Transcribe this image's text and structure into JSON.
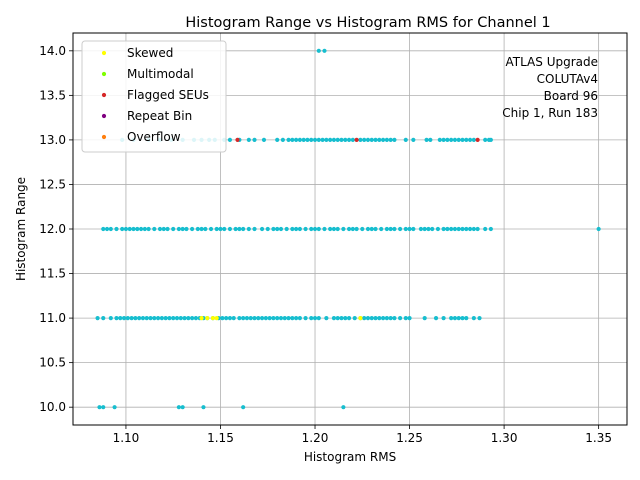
{
  "chart_data": {
    "type": "scatter",
    "title": "Histogram Range vs Histogram RMS for Channel 1",
    "xlabel": "Histogram RMS",
    "ylabel": "Histogram Range",
    "xlim": [
      1.072,
      1.365
    ],
    "ylim": [
      9.8,
      14.2
    ],
    "x_ticks": [
      "1.10",
      "1.15",
      "1.20",
      "1.25",
      "1.30",
      "1.35"
    ],
    "y_ticks": [
      "10.0",
      "10.5",
      "11.0",
      "11.5",
      "12.0",
      "12.5",
      "13.0",
      "13.5",
      "14.0"
    ],
    "grid": true,
    "legend_position": "top-left",
    "annotation": [
      "ATLAS Upgrade",
      "COLUTAv4",
      "Board 96",
      "Chip 1, Run 183"
    ],
    "colors": {
      "main": "#17becf",
      "skewed": "#ffff00",
      "multimodal": "#7fff00",
      "flagged": "#d62728",
      "repeat": "#800080",
      "overflow": "#ff7f0e"
    },
    "series": [
      {
        "name": "main",
        "color": "#17becf",
        "rows": [
          {
            "y": 14.0,
            "x": [
              1.202,
              1.205
            ]
          },
          {
            "y": 13.0,
            "x": [
              1.098,
              1.104,
              1.112,
              1.118,
              1.124,
              1.13,
              1.136,
              1.14,
              1.144,
              1.147,
              1.152,
              1.155,
              1.16,
              1.165,
              1.168,
              1.173,
              1.18,
              1.183,
              1.186,
              1.188,
              1.19,
              1.192,
              1.194,
              1.196,
              1.198,
              1.2,
              1.202,
              1.204,
              1.206,
              1.208,
              1.21,
              1.212,
              1.214,
              1.216,
              1.218,
              1.22,
              1.224,
              1.226,
              1.228,
              1.23,
              1.232,
              1.234,
              1.236,
              1.238,
              1.24,
              1.242,
              1.248,
              1.252,
              1.259,
              1.261,
              1.266,
              1.268,
              1.27,
              1.272,
              1.274,
              1.276,
              1.278,
              1.28,
              1.282,
              1.284,
              1.29,
              1.292,
              1.293
            ]
          },
          {
            "y": 12.0,
            "x": [
              1.088,
              1.09,
              1.092,
              1.095,
              1.098,
              1.1,
              1.102,
              1.104,
              1.106,
              1.108,
              1.11,
              1.112,
              1.115,
              1.118,
              1.12,
              1.122,
              1.125,
              1.128,
              1.13,
              1.132,
              1.135,
              1.138,
              1.14,
              1.142,
              1.145,
              1.148,
              1.15,
              1.152,
              1.155,
              1.158,
              1.16,
              1.162,
              1.165,
              1.168,
              1.172,
              1.175,
              1.178,
              1.18,
              1.182,
              1.185,
              1.188,
              1.19,
              1.192,
              1.195,
              1.198,
              1.2,
              1.202,
              1.205,
              1.208,
              1.21,
              1.212,
              1.215,
              1.218,
              1.22,
              1.222,
              1.225,
              1.228,
              1.23,
              1.232,
              1.235,
              1.238,
              1.24,
              1.242,
              1.245,
              1.248,
              1.25,
              1.252,
              1.256,
              1.258,
              1.26,
              1.262,
              1.265,
              1.268,
              1.27,
              1.272,
              1.274,
              1.276,
              1.278,
              1.28,
              1.282,
              1.284,
              1.286,
              1.29,
              1.293,
              1.35
            ]
          },
          {
            "y": 11.0,
            "x": [
              1.085,
              1.088,
              1.092,
              1.095,
              1.097,
              1.099,
              1.101,
              1.103,
              1.105,
              1.107,
              1.109,
              1.111,
              1.113,
              1.115,
              1.117,
              1.119,
              1.121,
              1.123,
              1.125,
              1.127,
              1.129,
              1.131,
              1.133,
              1.135,
              1.137,
              1.139,
              1.141,
              1.143,
              1.146,
              1.149,
              1.151,
              1.153,
              1.155,
              1.157,
              1.16,
              1.162,
              1.164,
              1.166,
              1.168,
              1.17,
              1.172,
              1.174,
              1.176,
              1.178,
              1.18,
              1.182,
              1.184,
              1.186,
              1.188,
              1.19,
              1.192,
              1.195,
              1.198,
              1.2,
              1.202,
              1.206,
              1.21,
              1.212,
              1.214,
              1.216,
              1.218,
              1.221,
              1.224,
              1.226,
              1.228,
              1.23,
              1.232,
              1.234,
              1.236,
              1.238,
              1.24,
              1.242,
              1.245,
              1.248,
              1.25,
              1.258,
              1.264,
              1.268,
              1.272,
              1.274,
              1.276,
              1.278,
              1.28,
              1.284,
              1.287
            ]
          },
          {
            "y": 10.0,
            "x": [
              1.086,
              1.088,
              1.094,
              1.128,
              1.13,
              1.141,
              1.162,
              1.215
            ]
          }
        ]
      },
      {
        "name": "Skewed",
        "color": "#ffff00",
        "points": [
          [
            1.14,
            11.0
          ],
          [
            1.143,
            11.0
          ],
          [
            1.146,
            11.0
          ],
          [
            1.148,
            11.0
          ],
          [
            1.224,
            11.0
          ]
        ]
      },
      {
        "name": "Multimodal",
        "color": "#7fff00",
        "points": []
      },
      {
        "name": "Flagged SEUs",
        "color": "#d62728",
        "points": [
          [
            1.159,
            13.0
          ],
          [
            1.222,
            13.0
          ],
          [
            1.286,
            13.0
          ]
        ]
      },
      {
        "name": "Repeat Bin",
        "color": "#800080",
        "points": []
      },
      {
        "name": "Overflow",
        "color": "#ff7f0e",
        "points": []
      }
    ]
  }
}
